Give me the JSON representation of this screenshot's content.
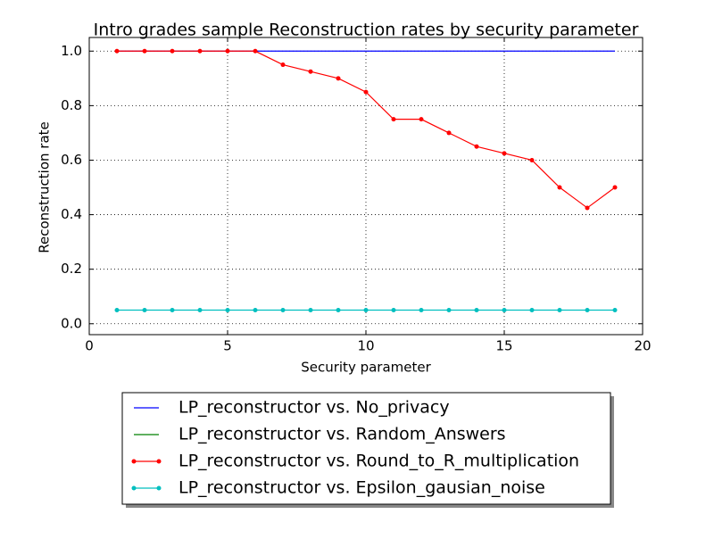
{
  "chart_data": {
    "type": "line",
    "title": "Intro grades sample Reconstruction rates by security parameter",
    "xlabel": "Security parameter",
    "ylabel": "Reconstruction rate",
    "x": [
      1,
      2,
      3,
      4,
      5,
      6,
      7,
      8,
      9,
      10,
      11,
      12,
      13,
      14,
      15,
      16,
      17,
      18,
      19
    ],
    "series": [
      {
        "name": "LP_reconstructor vs. No_privacy",
        "color": "#0000ff",
        "marker": false,
        "values": [
          1,
          1,
          1,
          1,
          1,
          1,
          1,
          1,
          1,
          1,
          1,
          1,
          1,
          1,
          1,
          1,
          1,
          1,
          1
        ]
      },
      {
        "name": "LP_reconstructor vs. Random_Answers",
        "color": "#008000",
        "marker": false,
        "values": [
          null,
          null,
          null,
          null,
          null,
          null,
          null,
          null,
          null,
          null,
          null,
          null,
          null,
          null,
          null,
          null,
          null,
          null,
          null
        ]
      },
      {
        "name": "LP_reconstructor vs. Round_to_R_multiplication",
        "color": "#ff0000",
        "marker": true,
        "values": [
          1,
          1,
          1,
          1,
          1,
          1,
          0.95,
          0.925,
          0.9,
          0.85,
          0.75,
          0.75,
          0.7,
          0.65,
          0.625,
          0.6,
          0.5,
          0.425,
          0.5
        ]
      },
      {
        "name": "LP_reconstructor vs. Epsilon_gausian_noise",
        "color": "#00bfbf",
        "marker": true,
        "values": [
          0.05,
          0.05,
          0.05,
          0.05,
          0.05,
          0.05,
          0.05,
          0.05,
          0.05,
          0.05,
          0.05,
          0.05,
          0.05,
          0.05,
          0.05,
          0.05,
          0.05,
          0.05,
          0.05
        ]
      }
    ],
    "xlim": [
      0,
      20
    ],
    "xticks": [
      0,
      5,
      10,
      15,
      20
    ],
    "ylim": [
      -0.04,
      1.05
    ],
    "yticks": [
      {
        "value": 0,
        "label": "0.0"
      },
      0.2,
      0.4,
      0.6,
      0.8,
      {
        "value": 1,
        "label": "1.0"
      }
    ],
    "grid": true,
    "legend": "below"
  }
}
